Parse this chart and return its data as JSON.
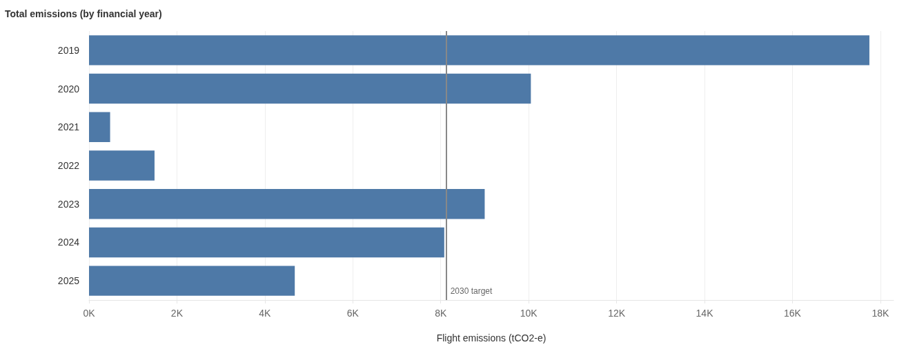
{
  "chart_data": {
    "type": "bar",
    "orientation": "horizontal",
    "title": "Total emissions (by financial year)",
    "xlabel": "Flight emissions (tCO2-e)",
    "categories": [
      "2019",
      "2020",
      "2021",
      "2022",
      "2023",
      "2024",
      "2025"
    ],
    "values": [
      17750,
      10050,
      480,
      1490,
      9000,
      8080,
      4680
    ],
    "color": "#4e79a7",
    "xlim": [
      0,
      18300
    ],
    "xticks": [
      {
        "value": 0,
        "label": "0K"
      },
      {
        "value": 2000,
        "label": "2K"
      },
      {
        "value": 4000,
        "label": "4K"
      },
      {
        "value": 6000,
        "label": "6K"
      },
      {
        "value": 8000,
        "label": "8K"
      },
      {
        "value": 10000,
        "label": "10K"
      },
      {
        "value": 12000,
        "label": "12K"
      },
      {
        "value": 14000,
        "label": "14K"
      },
      {
        "value": 16000,
        "label": "16K"
      },
      {
        "value": 18000,
        "label": "18K"
      }
    ],
    "ref_lines": [
      {
        "axis": "x",
        "value": 8130,
        "label": "2030 target",
        "color": "#888888"
      }
    ],
    "grid": "x"
  }
}
